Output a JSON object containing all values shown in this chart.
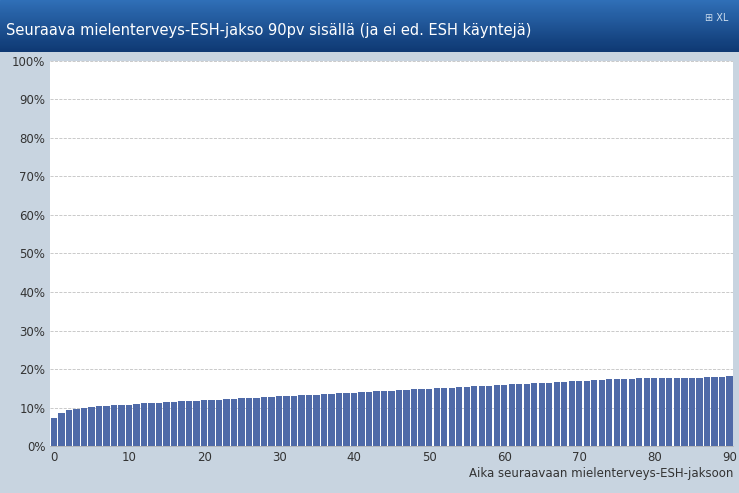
{
  "title": "Seuraava mielenterveys-ESH-jakso 90pv sisällä (ja ei ed. ESH käyntejä)",
  "xlabel": "Aika seuraavaan mielenterveys-ESH-jaksoon",
  "bar_color": "#4F6AA8",
  "title_bg_top": "#2060A0",
  "title_bg_bottom": "#1040A0",
  "title_text_color": "#FFFFFF",
  "plot_bg_color": "#FFFFFF",
  "fig_bg_color": "#C8D4E0",
  "grid_color": "#BBBBBB",
  "border_color": "#4A7BB0",
  "ylim": [
    0,
    1.0
  ],
  "xlim": [
    -0.5,
    90.5
  ],
  "yticks": [
    0.0,
    0.1,
    0.2,
    0.3,
    0.4,
    0.5,
    0.6,
    0.7,
    0.8,
    0.9,
    1.0
  ],
  "ytick_labels": [
    "0%",
    "10%",
    "20%",
    "30%",
    "40%",
    "50%",
    "60%",
    "70%",
    "80%",
    "90%",
    "100%"
  ],
  "xticks": [
    0,
    10,
    20,
    30,
    40,
    50,
    60,
    70,
    80,
    90
  ],
  "n_bars": 91,
  "values": [
    0.073,
    0.087,
    0.093,
    0.097,
    0.1,
    0.102,
    0.103,
    0.104,
    0.106,
    0.107,
    0.108,
    0.11,
    0.111,
    0.112,
    0.113,
    0.114,
    0.115,
    0.116,
    0.117,
    0.118,
    0.119,
    0.12,
    0.121,
    0.122,
    0.123,
    0.124,
    0.125,
    0.126,
    0.127,
    0.128,
    0.129,
    0.13,
    0.131,
    0.132,
    0.133,
    0.134,
    0.135,
    0.136,
    0.137,
    0.138,
    0.139,
    0.14,
    0.141,
    0.142,
    0.143,
    0.144,
    0.145,
    0.146,
    0.147,
    0.148,
    0.149,
    0.15,
    0.151,
    0.152,
    0.153,
    0.154,
    0.155,
    0.156,
    0.157,
    0.158,
    0.159,
    0.16,
    0.161,
    0.162,
    0.163,
    0.164,
    0.165,
    0.166,
    0.167,
    0.168,
    0.169,
    0.17,
    0.171,
    0.172,
    0.173,
    0.174,
    0.175,
    0.175,
    0.176,
    0.176,
    0.177,
    0.177,
    0.177,
    0.178,
    0.178,
    0.178,
    0.178,
    0.179,
    0.179,
    0.18,
    0.182
  ]
}
